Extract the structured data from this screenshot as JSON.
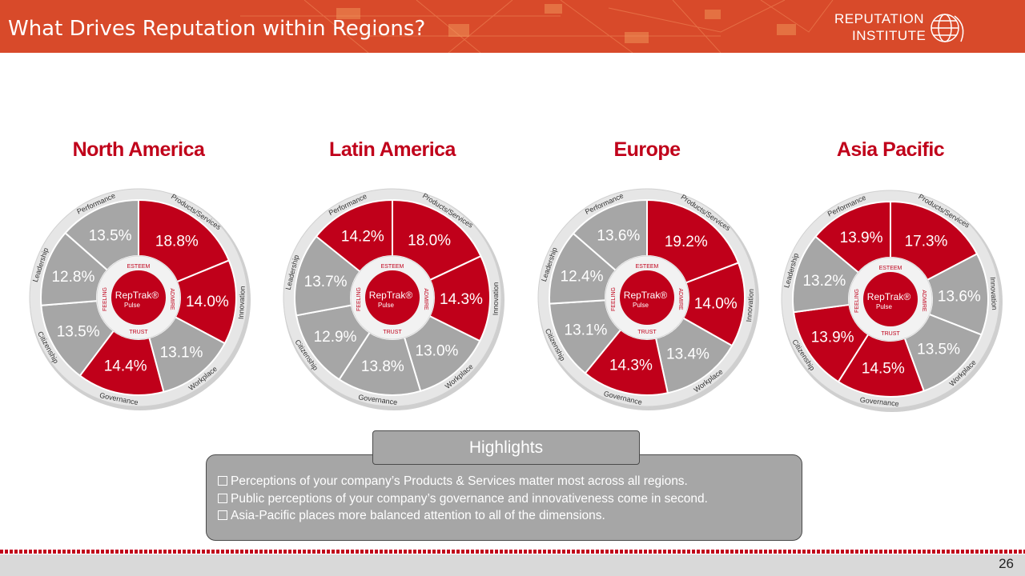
{
  "header": {
    "title": "What Drives Reputation within Regions?",
    "logo_line1": "REPUTATION",
    "logo_line2": "INSTITUTE"
  },
  "center_badge": {
    "top": "ESTEEM",
    "left": "FEELING",
    "right": "ADMIRE",
    "bottom": "TRUST",
    "brand": "RepTrak",
    "sub": "Pulse"
  },
  "colors": {
    "accent": "#c0001a",
    "header": "#d84a2a",
    "segment_gray": "#a6a6a6",
    "ring": "#e6e6e6"
  },
  "chart_data": [
    {
      "type": "pie",
      "title": "North America",
      "categories": [
        "Products/Services",
        "Innovation",
        "Workplace",
        "Governance",
        "Citizenship",
        "Leadership",
        "Performance"
      ],
      "values": [
        18.8,
        14.0,
        13.1,
        14.4,
        13.5,
        12.8,
        13.5
      ],
      "labels": [
        "18.8%",
        "14.0%",
        "13.1%",
        "14.4%",
        "13.5%",
        "12.8%",
        "13.5%"
      ],
      "highlighted": [
        true,
        true,
        false,
        true,
        false,
        false,
        false
      ]
    },
    {
      "type": "pie",
      "title": "Latin America",
      "categories": [
        "Products/Services",
        "Innovation",
        "Workplace",
        "Governance",
        "Citizenship",
        "Leadership",
        "Performance"
      ],
      "values": [
        18.0,
        14.3,
        13.0,
        13.8,
        12.9,
        13.7,
        14.2
      ],
      "labels": [
        "18.0%",
        "14.3%",
        "13.0%",
        "13.8%",
        "12.9%",
        "13.7%",
        "14.2%"
      ],
      "highlighted": [
        true,
        true,
        false,
        false,
        false,
        false,
        true
      ]
    },
    {
      "type": "pie",
      "title": "Europe",
      "categories": [
        "Products/Services",
        "Innovation",
        "Workplace",
        "Governance",
        "Citizenship",
        "Leadership",
        "Performance"
      ],
      "values": [
        19.2,
        14.0,
        13.4,
        14.3,
        13.1,
        12.4,
        13.6
      ],
      "labels": [
        "19.2%",
        "14.0%",
        "13.4%",
        "14.3%",
        "13.1%",
        "12.4%",
        "13.6%"
      ],
      "highlighted": [
        true,
        true,
        false,
        true,
        false,
        false,
        false
      ]
    },
    {
      "type": "pie",
      "title": "Asia Pacific",
      "categories": [
        "Products/Services",
        "Innovation",
        "Workplace",
        "Governance",
        "Citizenship",
        "Leadership",
        "Performance"
      ],
      "values": [
        17.3,
        13.6,
        13.5,
        14.5,
        13.9,
        13.2,
        13.9
      ],
      "labels": [
        "17.3%",
        "13.6%",
        "13.5%",
        "14.5%",
        "13.9%",
        "13.2%",
        "13.9%"
      ],
      "highlighted": [
        true,
        false,
        false,
        true,
        true,
        false,
        true
      ]
    }
  ],
  "highlights": {
    "title": "Highlights",
    "items": [
      "Perceptions of your company’s Products & Services matter most across all regions.",
      "Public perceptions of your company’s governance and innovativeness come in second.",
      "Asia-Pacific places more balanced attention to all of the dimensions."
    ]
  },
  "footer": {
    "page_number": "26"
  }
}
